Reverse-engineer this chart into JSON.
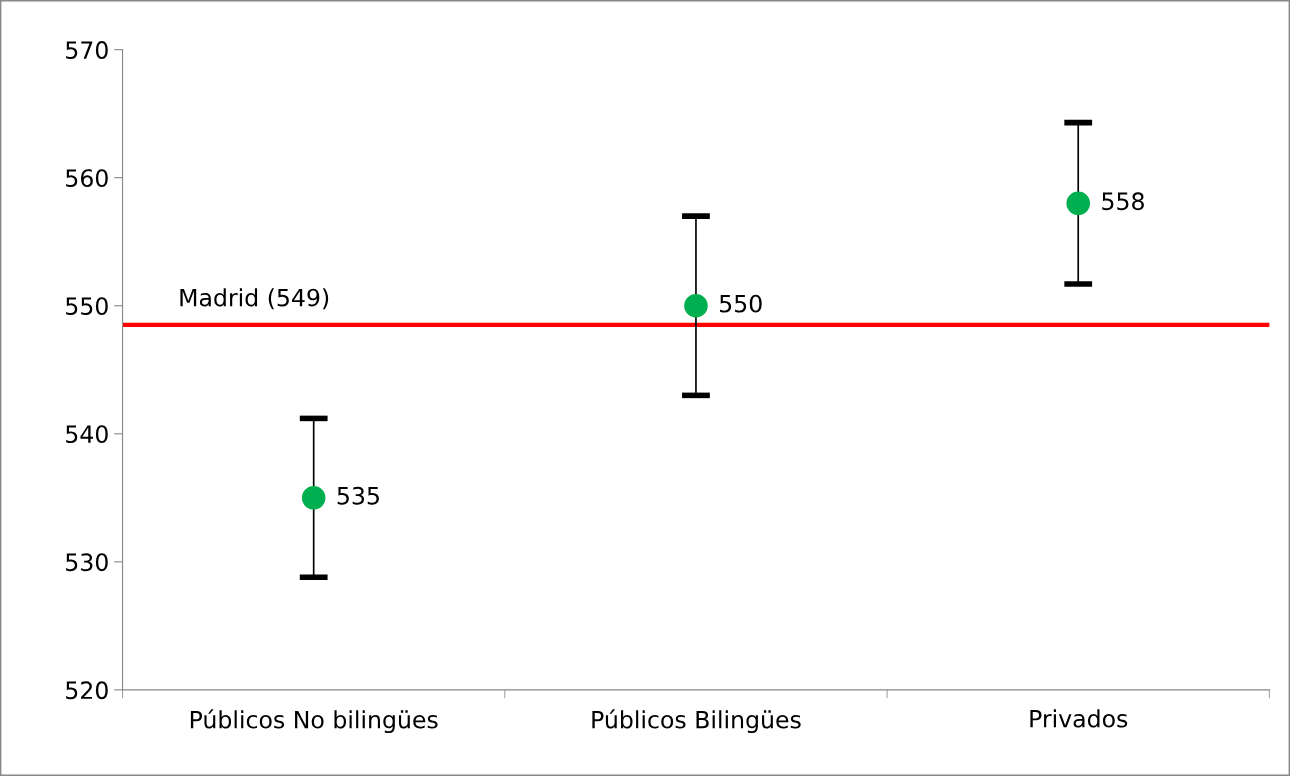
{
  "chart_data": {
    "type": "scatter",
    "categories": [
      "Públicos No bilingües",
      "Públicos Bilingües",
      "Privados"
    ],
    "series": [
      {
        "color": "#00b050",
        "values": [
          535,
          550,
          558
        ],
        "errors": [
          6.2,
          7,
          6.3
        ]
      }
    ],
    "ylim": [
      520,
      570
    ],
    "yticks": [
      520,
      530,
      540,
      550,
      560,
      570
    ],
    "ref_lines": [
      {
        "axis": "y",
        "value": 548.5,
        "label": "Madrid (549)",
        "color": "#ff0000"
      }
    ],
    "data_labels": true,
    "marker": "circle",
    "grid": false,
    "legend": false
  }
}
